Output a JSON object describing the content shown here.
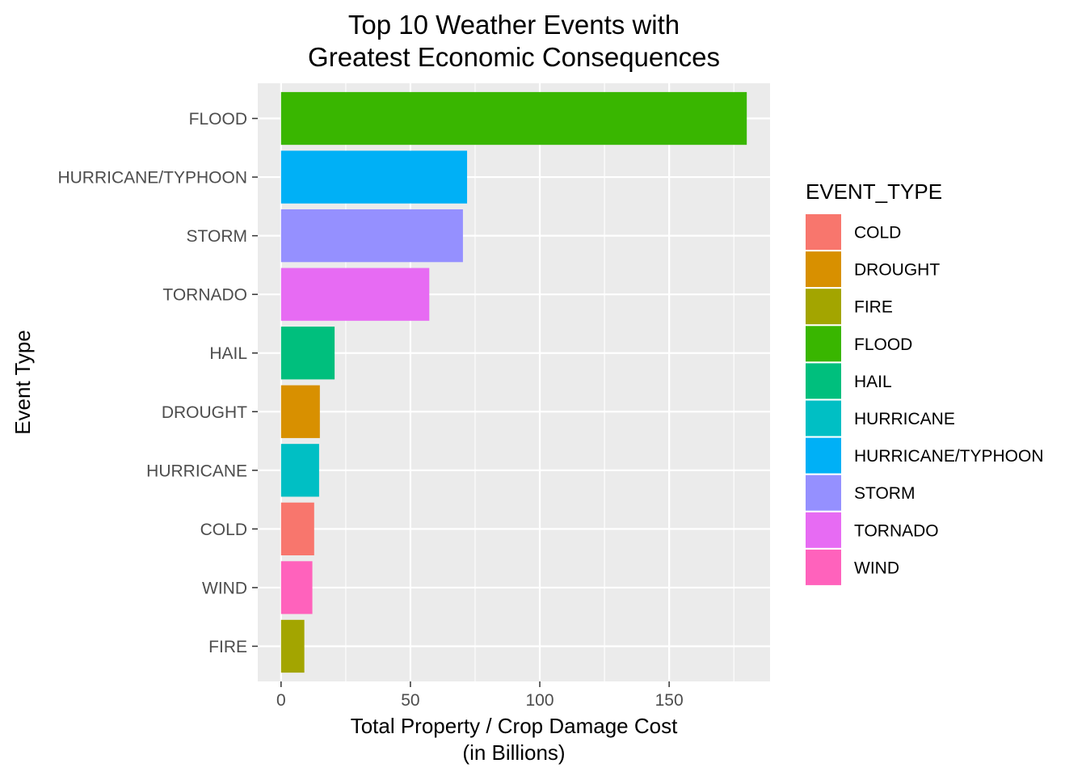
{
  "chart_data": {
    "type": "bar",
    "orientation": "horizontal",
    "title": [
      "Top 10 Weather Events with",
      "Greatest Economic Consequences"
    ],
    "xlabel": [
      "Total Property / Crop Damage Cost",
      "(in Billions)"
    ],
    "ylabel": "Event Type",
    "xlim": [
      -9,
      189
    ],
    "x_ticks": [
      0,
      50,
      100,
      150
    ],
    "grid": true,
    "categories": [
      "FLOOD",
      "HURRICANE/TYPHOON",
      "STORM",
      "TORNADO",
      "HAIL",
      "DROUGHT",
      "HURRICANE",
      "COLD",
      "WIND",
      "FIRE"
    ],
    "values": [
      180.0,
      71.9,
      70.3,
      57.3,
      20.7,
      15.0,
      14.7,
      12.8,
      12.1,
      9.0
    ],
    "colors": {
      "COLD": "#F8766D",
      "DROUGHT": "#D89000",
      "FIRE": "#A3A500",
      "FLOOD": "#39B600",
      "HAIL": "#00BF7D",
      "HURRICANE": "#00BFC4",
      "HURRICANE/TYPHOON": "#00B0F6",
      "STORM": "#9590FF",
      "TORNADO": "#E76BF3",
      "WIND": "#FF62BC"
    },
    "legend": {
      "title": "EVENT_TYPE",
      "position": "right",
      "entries": [
        "COLD",
        "DROUGHT",
        "FIRE",
        "FLOOD",
        "HAIL",
        "HURRICANE",
        "HURRICANE/TYPHOON",
        "STORM",
        "TORNADO",
        "WIND"
      ]
    },
    "panel_background": "#EBEBEB",
    "grid_color": "#FFFFFF"
  }
}
